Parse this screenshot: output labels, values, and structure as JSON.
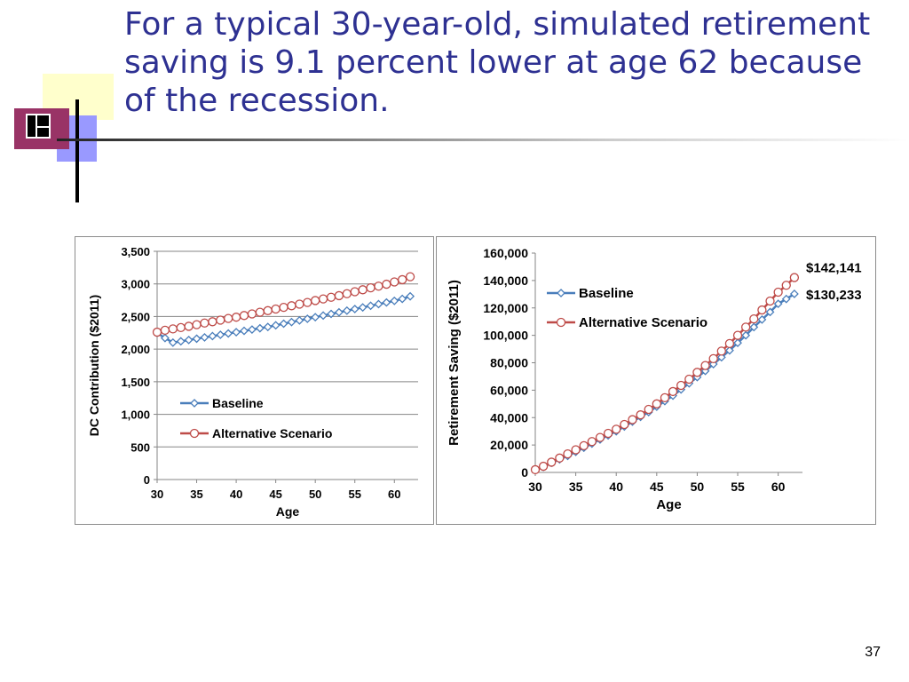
{
  "slide": {
    "title": "For a typical 30-year-old, simulated retirement saving is 9.1 percent lower at age 62 because of the recession.",
    "page_number": "37"
  },
  "colors": {
    "title": "#2e3192",
    "baseline": "#4a7ebb",
    "alternative": "#be4b48",
    "gridline": "#868686"
  },
  "chart_data": [
    {
      "type": "line",
      "title": "",
      "xlabel": "Age",
      "ylabel": "DC Contribution ($2011)",
      "xlim": [
        30,
        63
      ],
      "ylim": [
        0,
        3500
      ],
      "xticks": [
        30,
        35,
        40,
        45,
        50,
        55,
        60
      ],
      "xtick_labels": [
        "30",
        "35",
        "40",
        "45",
        "50",
        "55",
        "60"
      ],
      "yticks": [
        0,
        500,
        1000,
        1500,
        2000,
        2500,
        3000,
        3500
      ],
      "ytick_labels": [
        "0",
        "500",
        "1,000",
        "1,500",
        "2,000",
        "2,500",
        "3,000",
        "3,500"
      ],
      "grid": true,
      "legend_position": "lower-left",
      "x": [
        30,
        31,
        32,
        33,
        34,
        35,
        36,
        37,
        38,
        39,
        40,
        41,
        42,
        43,
        44,
        45,
        46,
        47,
        48,
        49,
        50,
        51,
        52,
        53,
        54,
        55,
        56,
        57,
        58,
        59,
        60,
        61,
        62
      ],
      "series": [
        {
          "name": "Baseline",
          "marker": "diamond",
          "values": [
            2250,
            2170,
            2100,
            2120,
            2140,
            2160,
            2180,
            2200,
            2220,
            2240,
            2260,
            2280,
            2300,
            2320,
            2340,
            2365,
            2390,
            2415,
            2440,
            2465,
            2490,
            2515,
            2540,
            2565,
            2590,
            2615,
            2640,
            2665,
            2690,
            2715,
            2740,
            2770,
            2810
          ]
        },
        {
          "name": "Alternative Scenario",
          "marker": "circle",
          "values": [
            2260,
            2290,
            2310,
            2330,
            2350,
            2375,
            2400,
            2420,
            2445,
            2470,
            2490,
            2515,
            2540,
            2565,
            2590,
            2615,
            2640,
            2665,
            2690,
            2715,
            2745,
            2770,
            2795,
            2820,
            2850,
            2880,
            2910,
            2940,
            2965,
            2995,
            3030,
            3065,
            3110
          ]
        }
      ]
    },
    {
      "type": "line",
      "title": "",
      "xlabel": "Age",
      "ylabel": "Retirement Saving ($2011)",
      "xlim": [
        30,
        63
      ],
      "ylim": [
        0,
        160000
      ],
      "xticks": [
        30,
        35,
        40,
        45,
        50,
        55,
        60
      ],
      "xtick_labels": [
        "30",
        "35",
        "40",
        "45",
        "50",
        "55",
        "60"
      ],
      "yticks": [
        0,
        20000,
        40000,
        60000,
        80000,
        100000,
        120000,
        140000,
        160000
      ],
      "ytick_labels": [
        "0",
        "20,000",
        "40,000",
        "60,000",
        "80,000",
        "100,000",
        "120,000",
        "140,000",
        "160,000"
      ],
      "grid": false,
      "legend_position": "top-left",
      "annotations": [
        "$142,141",
        "$130,233"
      ],
      "x": [
        30,
        31,
        32,
        33,
        34,
        35,
        36,
        37,
        38,
        39,
        40,
        41,
        42,
        43,
        44,
        45,
        46,
        47,
        48,
        49,
        50,
        51,
        52,
        53,
        54,
        55,
        56,
        57,
        58,
        59,
        60,
        61,
        62
      ],
      "series": [
        {
          "name": "Baseline",
          "marker": "diamond",
          "values": [
            2000,
            4000,
            7000,
            9500,
            12000,
            15000,
            18000,
            21000,
            24000,
            27000,
            30000,
            33500,
            37000,
            40500,
            44000,
            48000,
            52000,
            56000,
            60500,
            65000,
            69500,
            74000,
            79000,
            84000,
            89000,
            94500,
            100000,
            106000,
            111500,
            117000,
            123000,
            126500,
            130233
          ]
        },
        {
          "name": "Alternative Scenario",
          "marker": "circle",
          "values": [
            2000,
            4500,
            7500,
            10500,
            13500,
            16500,
            19500,
            22500,
            25500,
            28500,
            31500,
            35000,
            38500,
            42000,
            46000,
            50000,
            54500,
            59000,
            63500,
            68000,
            73000,
            78000,
            83000,
            88500,
            94000,
            100000,
            106000,
            112000,
            118500,
            125000,
            131500,
            136500,
            142141
          ]
        }
      ]
    }
  ]
}
